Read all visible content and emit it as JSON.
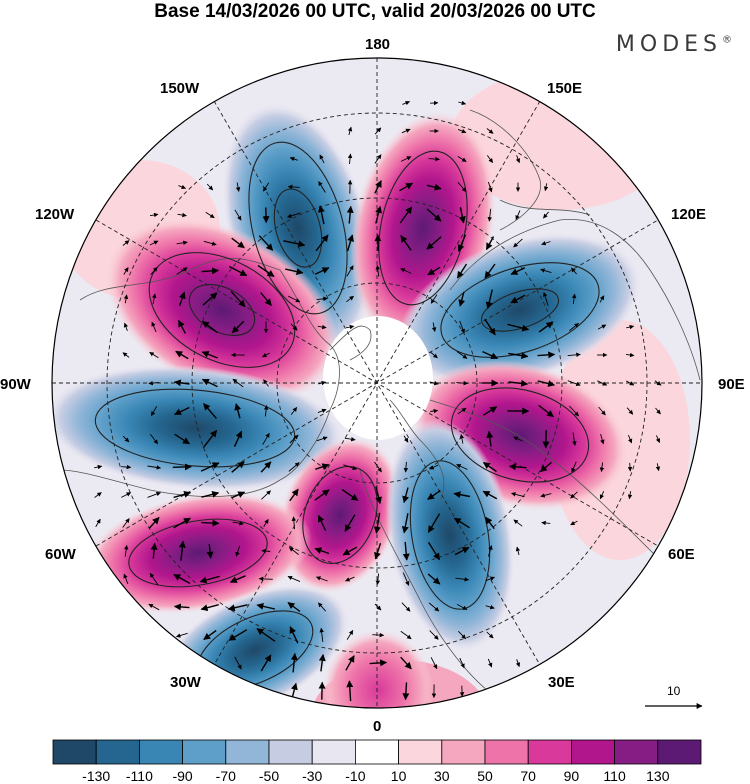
{
  "title": "Base 14/03/2026 00 UTC, valid 20/03/2026 00 UTC",
  "brand": "MODES",
  "brand_mark": "®",
  "longitude_labels": {
    "top": "180",
    "bottom": "0",
    "left": "90W",
    "right": "90E",
    "upper_left_1": "150W",
    "upper_left_2": "120W",
    "lower_left_1": "60W",
    "lower_left_2": "30W",
    "upper_right_1": "150E",
    "upper_right_2": "120E",
    "lower_right_1": "60E",
    "lower_right_2": "30E"
  },
  "reference_vector": "10",
  "colorbar": {
    "labels": [
      "-130",
      "-110",
      "-90",
      "-70",
      "-50",
      "-30",
      "-10",
      "10",
      "30",
      "50",
      "70",
      "90",
      "110",
      "130"
    ],
    "colors": [
      "#1f4868",
      "#24668f",
      "#3986b5",
      "#5d9fc9",
      "#92b6d8",
      "#c6cde3",
      "#e8e6f1",
      "#ffffff",
      "#fbd6dc",
      "#f5a7bf",
      "#ee73a9",
      "#d8399a",
      "#b2168d",
      "#861d84",
      "#5d1a74"
    ]
  },
  "anomalies": [
    {
      "name": "trough-150w",
      "sign": "negative",
      "magnitude": 130
    },
    {
      "name": "ridge-160e",
      "sign": "positive",
      "magnitude": 110
    },
    {
      "name": "trough-120e",
      "sign": "negative",
      "magnitude": 110
    },
    {
      "name": "ridge-110w",
      "sign": "positive",
      "magnitude": 130
    },
    {
      "name": "trough-80w",
      "sign": "negative",
      "magnitude": 110
    },
    {
      "name": "ridge-80e",
      "sign": "positive",
      "magnitude": 110
    },
    {
      "name": "ridge-45w",
      "sign": "positive",
      "magnitude": 90
    },
    {
      "name": "trough-20e",
      "sign": "negative",
      "magnitude": 110
    },
    {
      "name": "ridge-60w",
      "sign": "positive",
      "magnitude": 90
    },
    {
      "name": "trough-30w",
      "sign": "negative",
      "magnitude": 90
    },
    {
      "name": "ridge-5w",
      "sign": "positive",
      "magnitude": 50
    }
  ]
}
